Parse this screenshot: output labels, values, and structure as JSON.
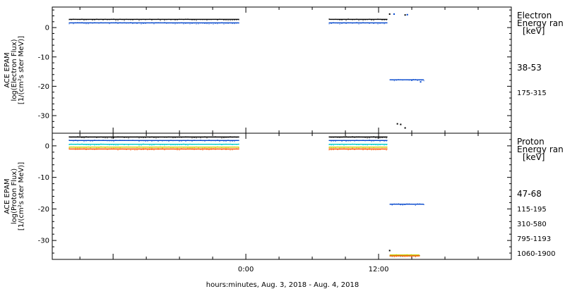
{
  "chart_data": [
    {
      "type": "scatter",
      "panel": "electron",
      "ylabel": [
        "ACE EPAM",
        "log(Electron Flux)",
        "[1/(cm²s ster MeV)]"
      ],
      "ylim": [
        -36,
        7
      ],
      "yticks": [
        0,
        -10,
        -20,
        -30
      ],
      "legend_title": [
        "Electron",
        "Energy ran",
        "[keV]"
      ],
      "series": [
        {
          "name": "38-53",
          "color": "#000000",
          "segments": [
            {
              "x": [
                -16,
                -0.6
              ],
              "y": 2.8
            },
            {
              "x": [
                7.5,
                12.8
              ],
              "y": 2.8
            }
          ],
          "points": [
            [
              13.0,
              4.6
            ],
            [
              14.4,
              4.3
            ]
          ]
        },
        {
          "name": "175-315",
          "color": "#0044cc",
          "segments": [
            {
              "x": [
                -16,
                -0.6
              ],
              "y": 1.6
            },
            {
              "x": [
                7.5,
                12.8
              ],
              "y": 1.6
            },
            {
              "x": [
                13.0,
                16.1
              ],
              "y": -17.8
            }
          ],
          "points": [
            [
              13.4,
              4.6
            ],
            [
              14.6,
              4.4
            ],
            [
              15.0,
              -17.9
            ],
            [
              15.8,
              -18.5
            ]
          ]
        },
        {
          "name": "",
          "color": "#000000",
          "segments": [],
          "points": [
            [
              13.7,
              -32.8
            ],
            [
              14.0,
              -33.0
            ],
            [
              14.4,
              -34.2
            ]
          ]
        }
      ]
    },
    {
      "type": "scatter",
      "panel": "proton",
      "ylabel": [
        "ACE EPAM",
        "log(Proton Flux)",
        "[1/(cm²s ster MeV)]"
      ],
      "ylim": [
        -36,
        4
      ],
      "yticks": [
        0,
        -10,
        -20,
        -30
      ],
      "legend_title": [
        "Proton",
        "Energy ran",
        "[keV]"
      ],
      "series": [
        {
          "name": "47-68",
          "color": "#000000",
          "segments": [
            {
              "x": [
                -16,
                -0.6
              ],
              "y": 2.8
            },
            {
              "x": [
                7.5,
                12.8
              ],
              "y": 2.8
            }
          ],
          "points": [
            [
              13.0,
              -33.2
            ]
          ]
        },
        {
          "name": "115-195",
          "color": "#0044cc",
          "segments": [
            {
              "x": [
                -16,
                -0.6
              ],
              "y": 1.7
            },
            {
              "x": [
                7.5,
                12.8
              ],
              "y": 1.7
            },
            {
              "x": [
                13.0,
                16.1
              ],
              "y": -18.5
            }
          ],
          "points": []
        },
        {
          "name": "310-580",
          "color": "#00cccc",
          "segments": [
            {
              "x": [
                -16,
                -0.6
              ],
              "y": 0.5
            },
            {
              "x": [
                7.5,
                12.8
              ],
              "y": 0.5
            },
            {
              "x": [
                13.0,
                15.7
              ],
              "y": -34.8
            }
          ],
          "points": []
        },
        {
          "name": "795-1193",
          "color": "#cccc00",
          "segments": [
            {
              "x": [
                -16,
                -0.6
              ],
              "y": -0.4
            },
            {
              "x": [
                7.5,
                12.8
              ],
              "y": -0.4
            },
            {
              "x": [
                13.0,
                15.7
              ],
              "y": -34.6
            }
          ],
          "points": []
        },
        {
          "name": "1060-1900",
          "color": "#ff5500",
          "segments": [
            {
              "x": [
                -16,
                -0.6
              ],
              "y": -1.0
            },
            {
              "x": [
                7.5,
                12.8
              ],
              "y": -1.0
            },
            {
              "x": [
                13.0,
                15.7
              ],
              "y": -34.9
            }
          ],
          "points": []
        }
      ]
    }
  ],
  "x_axis": {
    "range_hours": [
      -17.5,
      24
    ],
    "tick_labels": [
      {
        "hour": 0,
        "label": "0:00"
      },
      {
        "hour": 12,
        "label": "12:00"
      }
    ],
    "minor_every_hours": 3,
    "xlabel": "hours:minutes, Aug.  3, 2018 - Aug.  4, 2018"
  }
}
